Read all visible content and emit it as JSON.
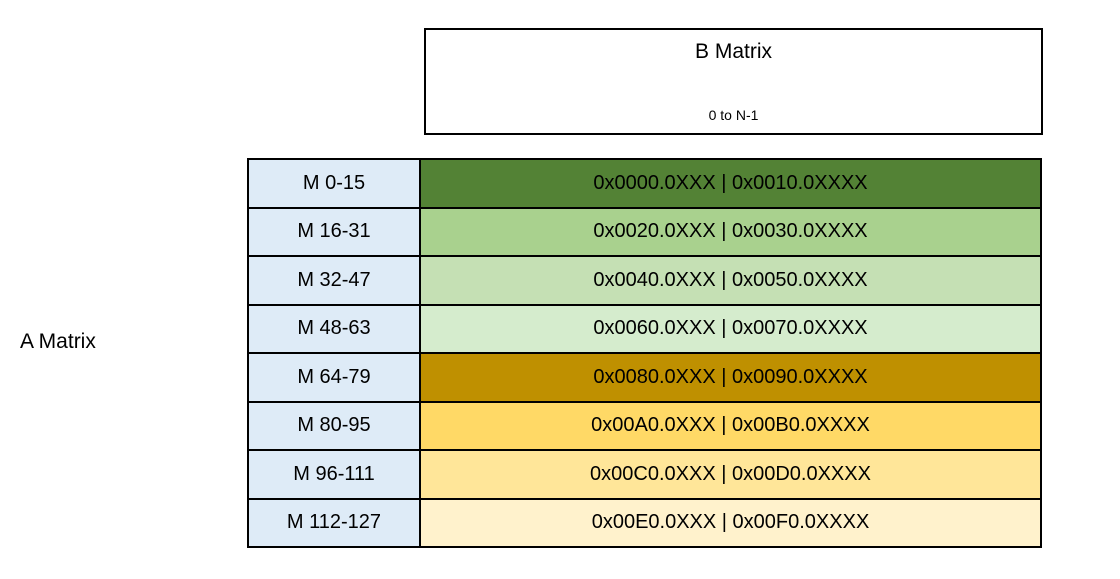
{
  "a_matrix": {
    "label": "A Matrix"
  },
  "b_matrix": {
    "title": "B Matrix",
    "subtitle": "0 to N-1"
  },
  "colors": {
    "label_column_bg": "#DEEBF7",
    "border": "#000000",
    "background": "#FFFFFF",
    "green_dark": "#538235",
    "gold_dark": "#BF9000"
  },
  "table": {
    "rows": [
      {
        "label": "M 0-15",
        "value": "0x0000.0XXX | 0x0010.0XXXX",
        "color": "#538235"
      },
      {
        "label": "M 16-31",
        "value": "0x0020.0XXX | 0x0030.0XXXX",
        "color": "#A9D18E"
      },
      {
        "label": "M 32-47",
        "value": "0x0040.0XXX | 0x0050.0XXXX",
        "color": "#C5E0B4"
      },
      {
        "label": "M 48-63",
        "value": "0x0060.0XXX | 0x0070.0XXXX",
        "color": "#D5ECCD"
      },
      {
        "label": "M 64-79",
        "value": "0x0080.0XXX | 0x0090.0XXXX",
        "color": "#BF9000"
      },
      {
        "label": "M 80-95",
        "value": "0x00A0.0XXX | 0x00B0.0XXXX",
        "color": "#FFD966"
      },
      {
        "label": "M 96-111",
        "value": "0x00C0.0XXX | 0x00D0.0XXXX",
        "color": "#FFE699"
      },
      {
        "label": "M 112-127",
        "value": "0x00E0.0XXX | 0x00F0.0XXXX",
        "color": "#FFF2CC"
      }
    ]
  }
}
